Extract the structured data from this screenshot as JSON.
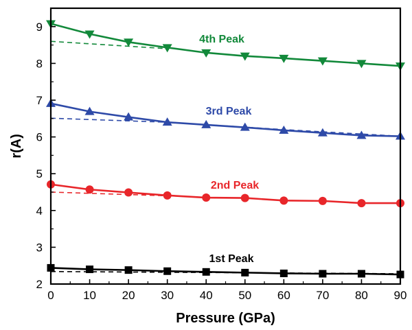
{
  "chart_data": {
    "type": "line",
    "title": "",
    "xlabel": "Pressure (GPa)",
    "ylabel": "r(A)",
    "xlim": [
      0,
      90
    ],
    "ylim": [
      2,
      9.5
    ],
    "xticks": [
      0,
      10,
      20,
      30,
      40,
      50,
      60,
      70,
      80,
      90
    ],
    "yticks": [
      2,
      3,
      4,
      5,
      6,
      7,
      8,
      9
    ],
    "grid": false,
    "legend": "none",
    "x": [
      0,
      10,
      20,
      30,
      40,
      50,
      60,
      70,
      80,
      90
    ],
    "series": [
      {
        "name": "1st Peak",
        "color": "#000000",
        "marker": "square",
        "values": [
          2.44,
          2.4,
          2.38,
          2.35,
          2.33,
          2.31,
          2.29,
          2.28,
          2.28,
          2.26
        ],
        "reference_line": [
          [
            0,
            2.34
          ],
          [
            90,
            2.28
          ]
        ]
      },
      {
        "name": "2nd Peak",
        "color": "#e8262a",
        "marker": "circle",
        "values": [
          4.71,
          4.57,
          4.49,
          4.41,
          4.35,
          4.34,
          4.27,
          4.26,
          4.2,
          4.2
        ],
        "reference_line": [
          [
            0,
            4.5
          ],
          [
            30,
            4.4
          ]
        ]
      },
      {
        "name": "3rd Peak",
        "color": "#2e4aa8",
        "marker": "triangle-up",
        "values": [
          6.91,
          6.69,
          6.54,
          6.4,
          6.33,
          6.26,
          6.18,
          6.11,
          6.04,
          6.02
        ],
        "reference_line": [
          [
            0,
            6.51
          ],
          [
            30,
            6.4
          ],
          [
            60,
            6.2
          ],
          [
            90,
            6.02
          ]
        ]
      },
      {
        "name": "4th Peak",
        "color": "#12893a",
        "marker": "triangle-down",
        "values": [
          9.08,
          8.8,
          8.58,
          8.43,
          8.29,
          8.2,
          8.14,
          8.07,
          8.0,
          7.93
        ],
        "reference_line": [
          [
            0,
            8.6
          ],
          [
            30,
            8.4
          ]
        ]
      }
    ]
  }
}
